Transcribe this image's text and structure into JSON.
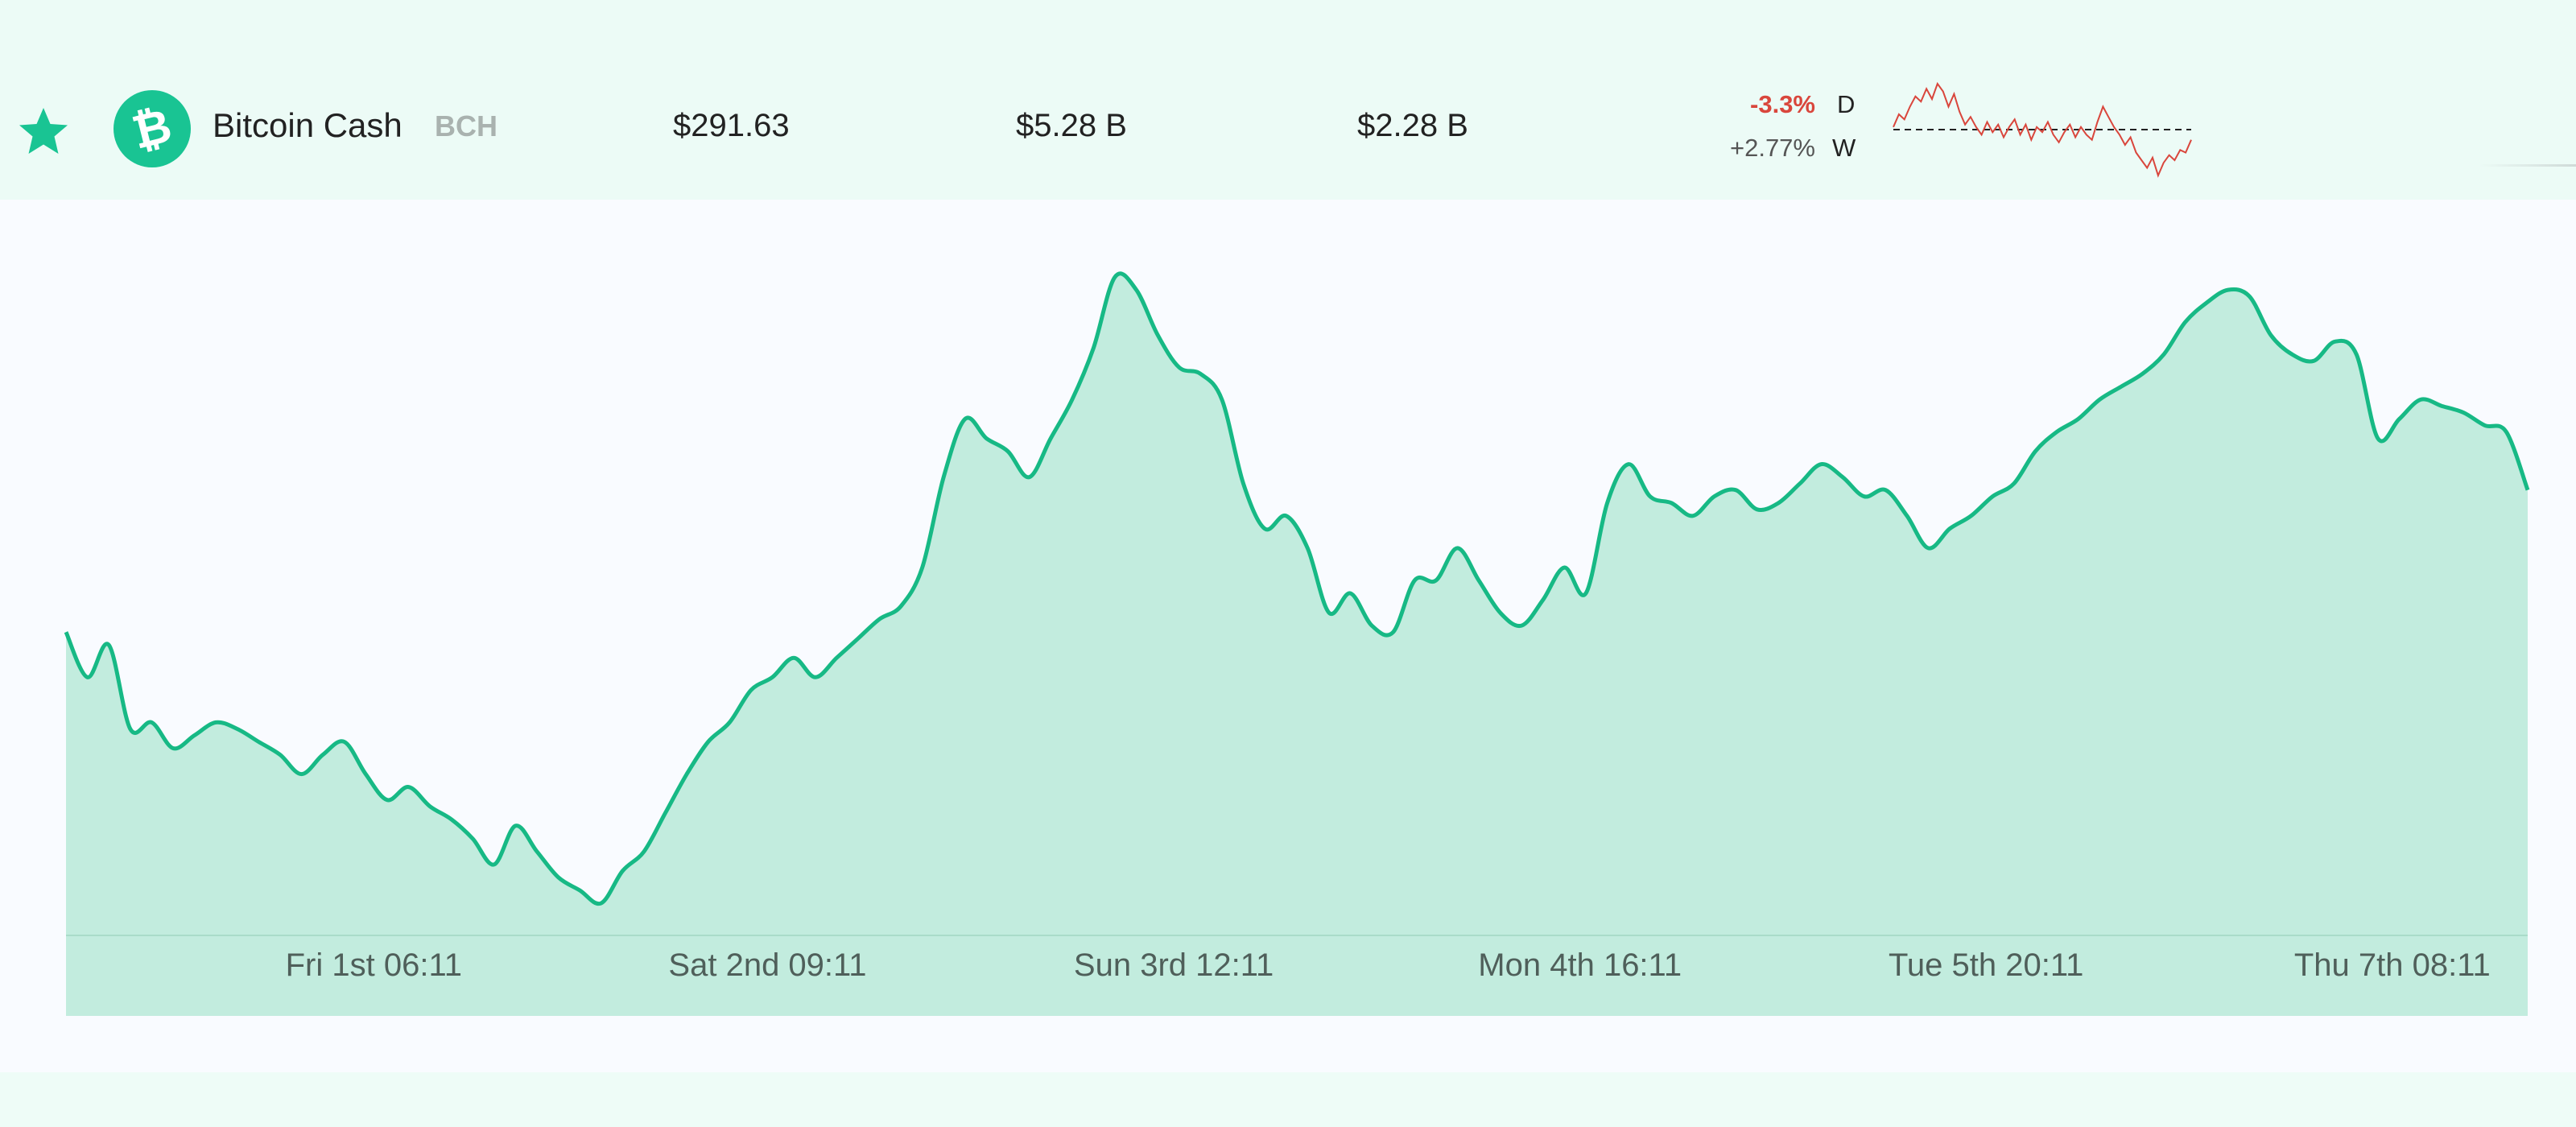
{
  "asset": {
    "name": "Bitcoin Cash",
    "symbol": "BCH",
    "logo_glyph": "₿",
    "price": "$291.63",
    "market_cap": "$5.28 B",
    "volume": "$2.28 B",
    "change_day": "-3.3%",
    "change_day_label": "D",
    "change_week": "+2.77%",
    "change_week_label": "W",
    "favorite_icon": "star-icon"
  },
  "colors": {
    "brand": "#19c493",
    "line": "#17b985",
    "area": "#c2ecde",
    "negative": "#d9463c",
    "axis_text": "#4f5f5a"
  },
  "sparkline": {
    "type": "line",
    "baseline": 0,
    "values": [
      0.1,
      0.6,
      0.4,
      0.9,
      1.3,
      1.1,
      1.6,
      1.2,
      1.8,
      1.5,
      0.9,
      1.4,
      0.7,
      0.2,
      0.5,
      0.1,
      -0.2,
      0.3,
      -0.1,
      0.2,
      -0.3,
      0.1,
      0.4,
      -0.2,
      0.2,
      -0.4,
      0.1,
      -0.1,
      0.3,
      -0.2,
      -0.5,
      -0.1,
      0.2,
      -0.3,
      0.1,
      -0.2,
      -0.4,
      0.3,
      0.9,
      0.5,
      0.1,
      -0.2,
      -0.6,
      -0.3,
      -0.9,
      -1.2,
      -1.5,
      -1.1,
      -1.8,
      -1.3,
      -1.0,
      -1.2,
      -0.8,
      -0.9,
      -0.4
    ]
  },
  "chart_data": {
    "type": "area",
    "x_tick_labels": [
      "Fri 1st 06:11",
      "Sat 2nd 09:11",
      "Sun 3rd 12:11",
      "Mon 4th 16:11",
      "Tue 5th 20:11",
      "Thu 7th 08:11"
    ],
    "x_tick_positions": [
      0.125,
      0.285,
      0.45,
      0.615,
      0.78,
      0.945
    ],
    "ylim": [
      0,
      100
    ],
    "values": [
      42,
      35,
      40,
      27,
      28,
      24,
      26,
      28,
      27,
      25,
      23,
      20,
      23,
      25,
      20,
      16,
      18,
      15,
      13,
      10,
      6,
      12,
      8,
      4,
      2,
      0,
      5,
      8,
      14,
      20,
      25,
      28,
      33,
      35,
      38,
      35,
      38,
      41,
      44,
      46,
      52,
      66,
      75,
      72,
      70,
      66,
      72,
      78,
      86,
      97,
      95,
      88,
      83,
      82,
      78,
      65,
      58,
      60,
      55,
      45,
      48,
      43,
      42,
      50,
      50,
      55,
      50,
      45,
      43,
      47,
      52,
      48,
      62,
      68,
      63,
      62,
      60,
      63,
      64,
      61,
      62,
      65,
      68,
      66,
      63,
      64,
      60,
      55,
      58,
      60,
      63,
      65,
      70,
      73,
      75,
      78,
      80,
      82,
      85,
      90,
      93,
      95,
      94,
      88,
      85,
      84,
      87,
      85,
      72,
      75,
      78,
      77,
      76,
      74,
      73,
      64
    ]
  }
}
